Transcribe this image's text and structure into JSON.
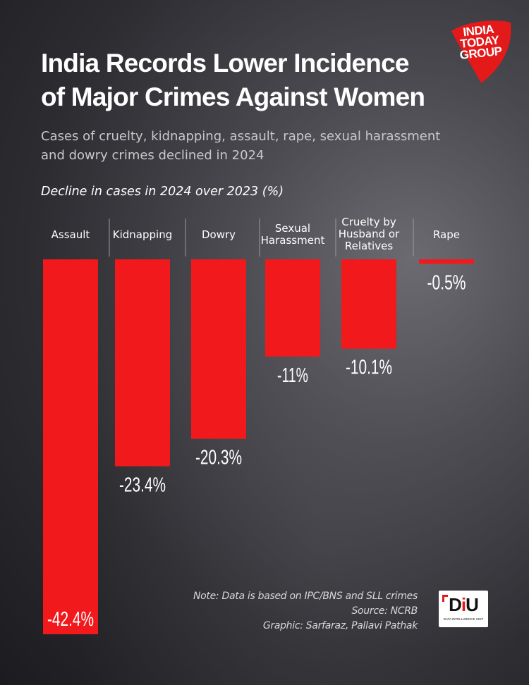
{
  "title_line1": "India Records Lower Incidence",
  "title_line2": "of Major Crimes Against Women",
  "subtitle_line1": "Cases of cruelty, kidnapping, assault, rape, sexual harassment",
  "subtitle_line2": "and dowry crimes declined in 2024",
  "chart_label": "Decline in cases  in 2024 over 2023 (%)",
  "logo": {
    "line1": "INDIA",
    "line2": "TODAY",
    "line3": "GROUP",
    "color": "#e3191a"
  },
  "notes": {
    "note": "Note: Data is based on IPC/BNS and SLL crimes",
    "source": "Source: NCRB",
    "credit": "Graphic: Sarfaraz, Pallavi Pathak"
  },
  "diu": {
    "letters_d": "D",
    "letters_i": "i",
    "letters_u": "U",
    "small": "DATA INTELLIGENCE UNIT"
  },
  "chart_data": {
    "type": "bar",
    "orientation": "vertical-downward",
    "title": "Decline in cases  in 2024 over 2023 (%)",
    "bar_color": "#f2191c",
    "categories": [
      [
        "Assault"
      ],
      [
        "Kidnapping"
      ],
      [
        "Dowry"
      ],
      [
        "Sexual",
        "Harassment"
      ],
      [
        "Cruelty by",
        "Husband or",
        "Relatives"
      ],
      [
        "Rape"
      ]
    ],
    "values": [
      -42.4,
      -23.4,
      -20.3,
      -11,
      -10.1,
      -0.5
    ],
    "value_labels": [
      "-42.4%",
      "-23.4%",
      "-20.3%",
      "-11%",
      "-10.1%",
      "-0.5%"
    ],
    "ylim": [
      -42.4,
      0
    ]
  }
}
